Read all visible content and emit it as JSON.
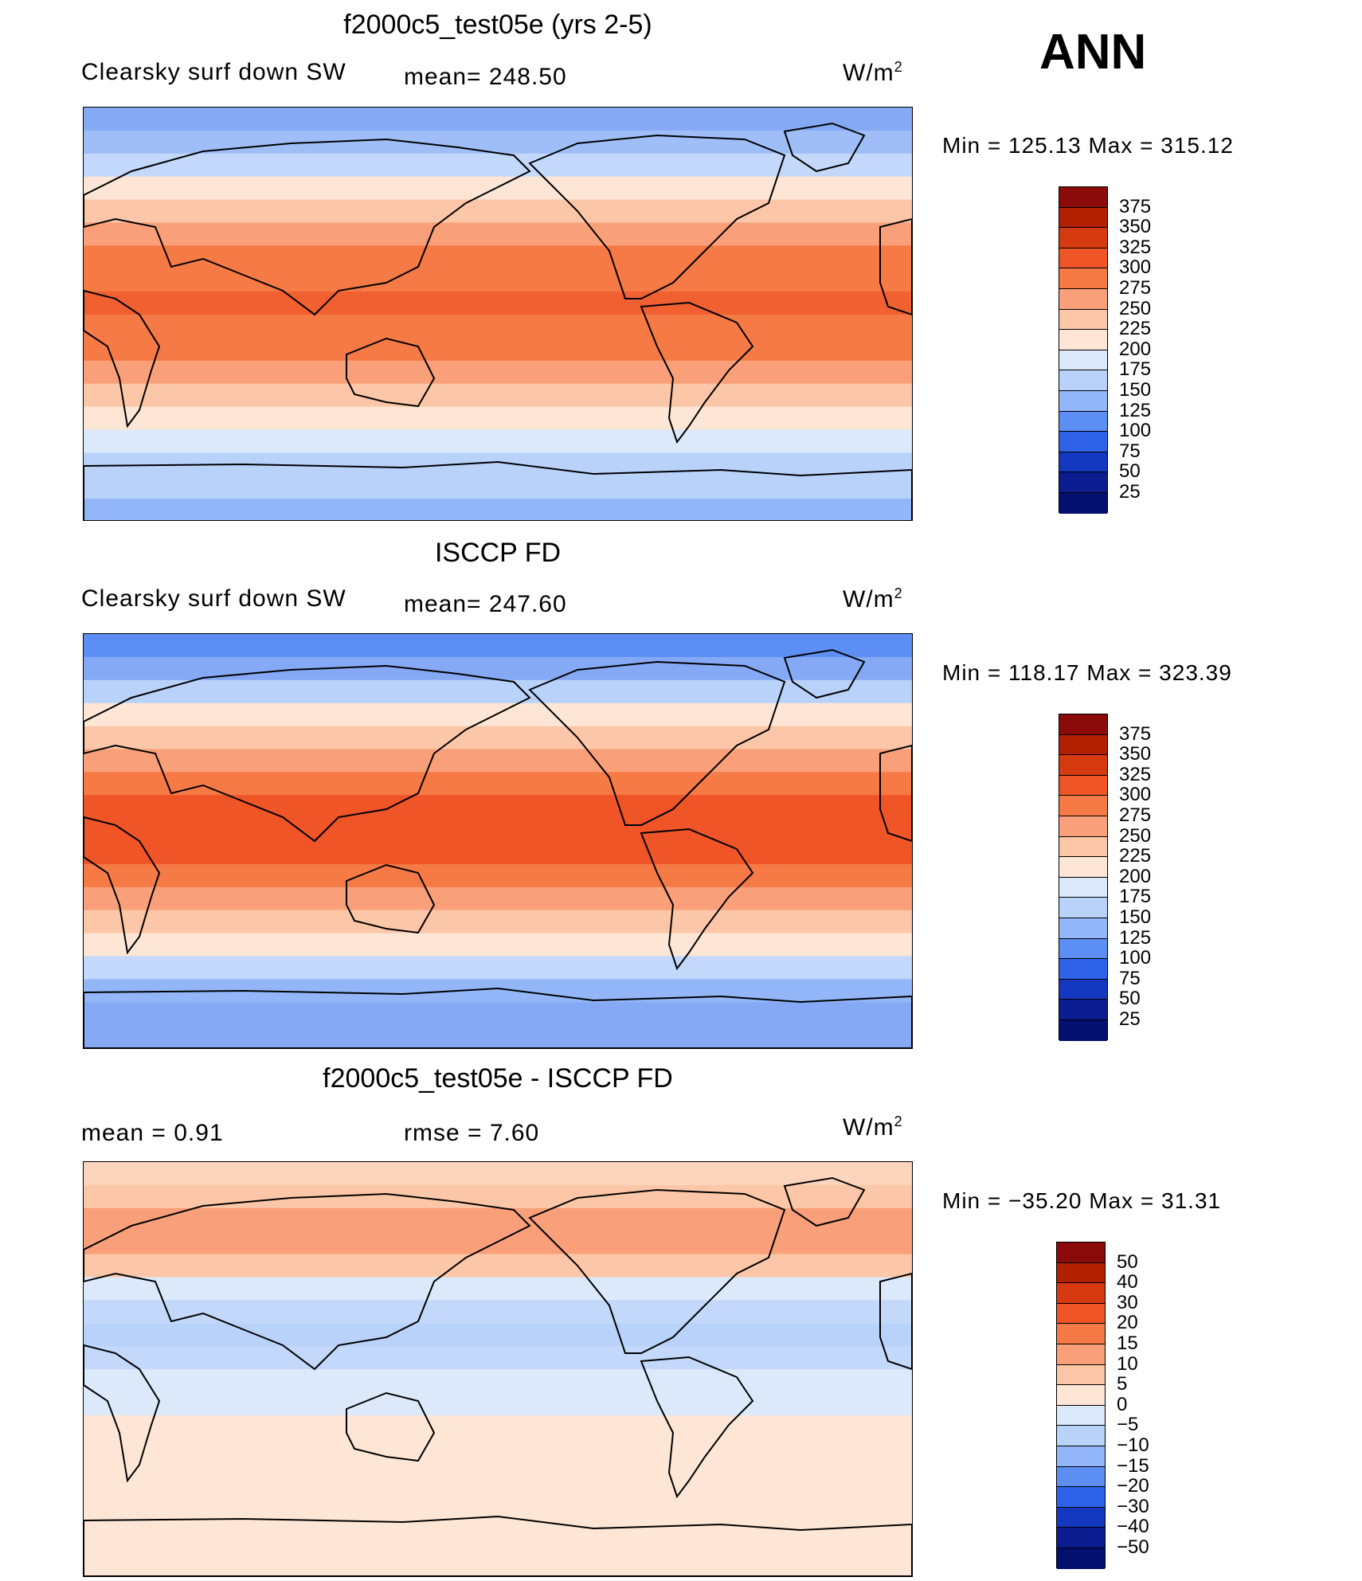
{
  "header": {
    "season": "ANN"
  },
  "panels": [
    {
      "id": "model",
      "title": "f2000c5_test05e (yrs 2-5)",
      "left_label": "Clearsky  surf  down  SW",
      "center_label": "mean=  248.50",
      "units": "W/m",
      "units_sup": "2",
      "minmax": "Min  =  125.13  Max  =  315.12",
      "colorbar": {
        "levels": [
          "375",
          "350",
          "325",
          "300",
          "275",
          "250",
          "225",
          "200",
          "175",
          "150",
          "125",
          "100",
          "75",
          "50",
          "25"
        ],
        "colors": [
          "#8b0a0a",
          "#b32000",
          "#d63a10",
          "#ef5526",
          "#f57a45",
          "#f9a07a",
          "#fcc7a8",
          "#fde6d6",
          "#dbe9fb",
          "#b9d2fa",
          "#92b6f7",
          "#5c8ef3",
          "#2e62e8",
          "#1438c0",
          "#0a1c8f",
          "#041070"
        ]
      },
      "map_rows": [
        "#86a9f5",
        "#9fbef8",
        "#c3d8fa",
        "#fde6d6",
        "#fcc7a8",
        "#f9a07a",
        "#f57a45",
        "#f57a45",
        "#f06030",
        "#f57a45",
        "#f57a45",
        "#f9a07a",
        "#fcc7a8",
        "#fde6d6",
        "#dbe9fb",
        "#b9d2fa",
        "#b9d2fa",
        "#92b6f7"
      ]
    },
    {
      "id": "obs",
      "title": "ISCCP FD",
      "left_label": "Clearsky  surf  down  SW",
      "center_label": "mean=  247.60",
      "units": "W/m",
      "units_sup": "2",
      "minmax": "Min  =  118.17  Max  =  323.39",
      "colorbar": {
        "levels": [
          "375",
          "350",
          "325",
          "300",
          "275",
          "250",
          "225",
          "200",
          "175",
          "150",
          "125",
          "100",
          "75",
          "50",
          "25"
        ],
        "colors": [
          "#8b0a0a",
          "#b32000",
          "#d63a10",
          "#ef5526",
          "#f57a45",
          "#f9a07a",
          "#fcc7a8",
          "#fde6d6",
          "#dbe9fb",
          "#b9d2fa",
          "#92b6f7",
          "#5c8ef3",
          "#2e62e8",
          "#1438c0",
          "#0a1c8f",
          "#041070"
        ]
      },
      "map_rows": [
        "#5c8ef3",
        "#86a9f5",
        "#b9d2fa",
        "#fde6d6",
        "#fcc7a8",
        "#f9a07a",
        "#f57a45",
        "#ef5526",
        "#ef5526",
        "#ef5526",
        "#f57a45",
        "#f9a07a",
        "#fcc7a8",
        "#fde6d6",
        "#c3d8fa",
        "#92b6f7",
        "#86a9f5",
        "#86a9f5"
      ]
    },
    {
      "id": "diff",
      "title": "f2000c5_test05e - ISCCP FD",
      "left_label": "mean  =      0.91",
      "center_label": "rmse  =      7.60",
      "units": "W/m",
      "units_sup": "2",
      "minmax": "Min  =  −35.20  Max  =    31.31",
      "colorbar": {
        "levels": [
          "50",
          "40",
          "30",
          "20",
          "15",
          "10",
          "5",
          "0",
          "−5",
          "−10",
          "−15",
          "−20",
          "−30",
          "−40",
          "−50"
        ],
        "colors": [
          "#8b0a0a",
          "#b32000",
          "#d63a10",
          "#ef5526",
          "#f57a45",
          "#f9a07a",
          "#fcc7a8",
          "#fde6d6",
          "#dbe9fb",
          "#b9d2fa",
          "#92b6f7",
          "#5c8ef3",
          "#2e62e8",
          "#1438c0",
          "#0a1c8f",
          "#041070"
        ]
      },
      "map_rows": [
        "#fcd5bd",
        "#fcc7a8",
        "#f9a07a",
        "#f9a07a",
        "#fcc7a8",
        "#dbe9fb",
        "#c3d8fa",
        "#b9d2fa",
        "#c3d8fa",
        "#dbe9fb",
        "#dbe9fb",
        "#fde6d6",
        "#fde6d6",
        "#fde6d6",
        "#fde6d6",
        "#fde6d6",
        "#fde6d6",
        "#fde6d6"
      ]
    }
  ]
}
